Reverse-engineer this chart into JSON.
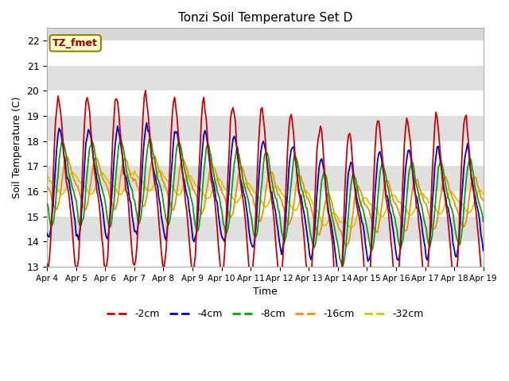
{
  "title": "Tonzi Soil Temperature Set D",
  "xlabel": "Time",
  "ylabel": "Soil Temperature (C)",
  "annotation": "TZ_fmet",
  "ylim": [
    13.0,
    22.5
  ],
  "yticks": [
    13.0,
    14.0,
    15.0,
    16.0,
    17.0,
    18.0,
    19.0,
    20.0,
    21.0,
    22.0
  ],
  "xtick_labels": [
    "Apr 4",
    "Apr 5",
    "Apr 6",
    "Apr 7",
    "Apr 8",
    "Apr 9",
    "Apr 10",
    "Apr 11",
    "Apr 12",
    "Apr 13",
    "Apr 14",
    "Apr 15",
    "Apr 16",
    "Apr 17",
    "Apr 18",
    "Apr 19"
  ],
  "colors": {
    "-2cm": "#cc0000",
    "-4cm": "#0000cc",
    "-8cm": "#00aa00",
    "-16cm": "#ff8800",
    "-32cm": "#cccc00"
  },
  "legend_labels": [
    "-2cm",
    "-4cm",
    "-8cm",
    "-16cm",
    "-32cm"
  ],
  "fig_bg_color": "#ffffff",
  "plot_bg_color": "#d8d8d8",
  "annotation_bg": "#ffffcc",
  "annotation_border": "#888800",
  "annotation_text_color": "#990000",
  "band_colors": [
    "#ffffff",
    "#e0e0e0"
  ]
}
